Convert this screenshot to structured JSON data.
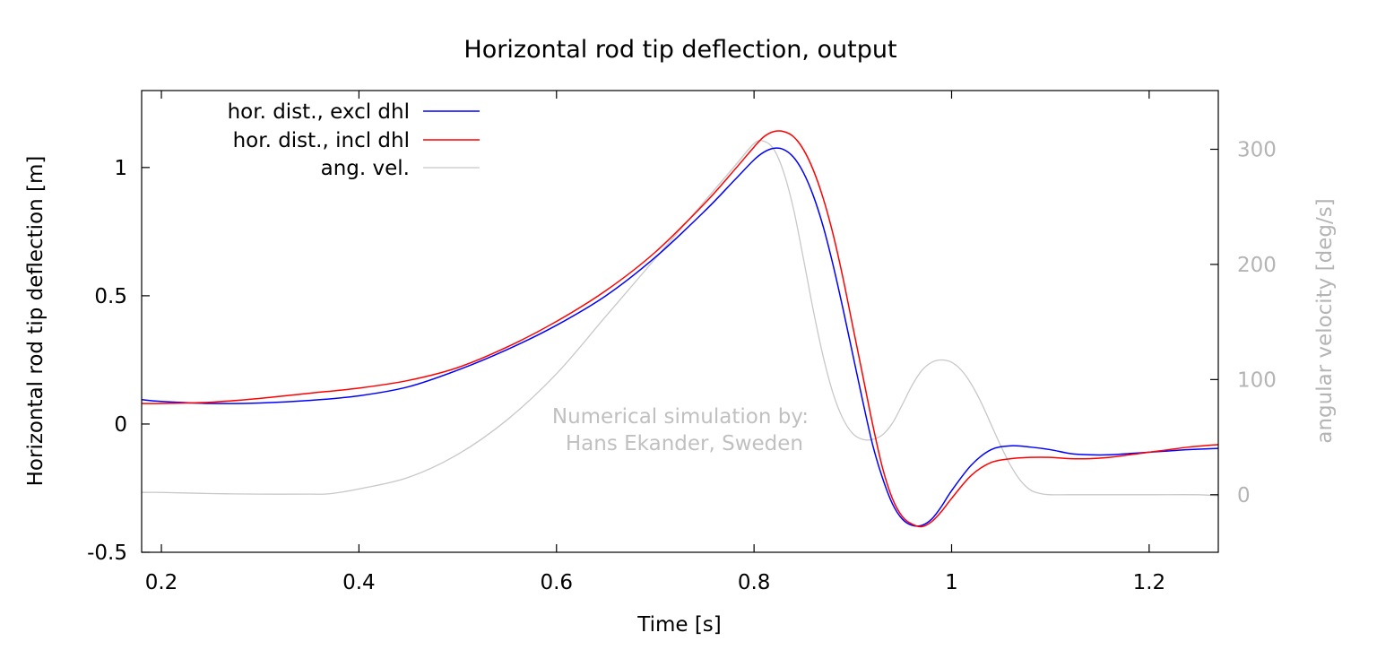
{
  "chart_data": {
    "type": "line",
    "title": "Horizontal rod tip deflection, output",
    "xlabel": "Time [s]",
    "ylabel": "Horizontal rod tip deflection [m]",
    "y2label": "angular velocity [deg/s]",
    "xlim": [
      0.18,
      1.27
    ],
    "ylim": [
      -0.5,
      1.3
    ],
    "y2lim": [
      -50,
      351
    ],
    "xticks": [
      0.2,
      0.4,
      0.6,
      0.8,
      1,
      1.2
    ],
    "xtick_labels": [
      "0.2",
      "0.4",
      "0.6",
      "0.8",
      "1",
      "1.2"
    ],
    "yticks": [
      -0.5,
      0,
      0.5,
      1
    ],
    "ytick_labels": [
      "-0.5",
      "0",
      "0.5",
      "1"
    ],
    "y2ticks": [
      0,
      100,
      200,
      300
    ],
    "y2tick_labels": [
      "0",
      "100",
      "200",
      "300"
    ],
    "grid": false,
    "legend_position": "top-left",
    "annotation": [
      "Numerical simulation by:",
      "Hans Ekander, Sweden"
    ],
    "series": [
      {
        "name": "hor. dist., excl dhl",
        "axis": "y",
        "color": "#0000ff",
        "x": [
          0.18,
          0.2,
          0.25,
          0.3,
          0.35,
          0.4,
          0.45,
          0.5,
          0.55,
          0.6,
          0.65,
          0.7,
          0.75,
          0.78,
          0.8,
          0.81,
          0.82,
          0.83,
          0.84,
          0.85,
          0.86,
          0.87,
          0.88,
          0.89,
          0.9,
          0.91,
          0.92,
          0.93,
          0.94,
          0.95,
          0.96,
          0.97,
          0.98,
          0.99,
          1.0,
          1.02,
          1.04,
          1.06,
          1.08,
          1.1,
          1.12,
          1.14,
          1.16,
          1.18,
          1.2,
          1.22,
          1.24,
          1.27
        ],
        "y": [
          0.095,
          0.088,
          0.08,
          0.082,
          0.092,
          0.11,
          0.145,
          0.21,
          0.29,
          0.385,
          0.5,
          0.65,
          0.83,
          0.95,
          1.03,
          1.06,
          1.075,
          1.07,
          1.04,
          0.98,
          0.89,
          0.77,
          0.62,
          0.45,
          0.27,
          0.09,
          -0.08,
          -0.21,
          -0.31,
          -0.37,
          -0.395,
          -0.395,
          -0.37,
          -0.32,
          -0.26,
          -0.16,
          -0.1,
          -0.085,
          -0.09,
          -0.1,
          -0.115,
          -0.12,
          -0.12,
          -0.115,
          -0.11,
          -0.105,
          -0.1,
          -0.095
        ]
      },
      {
        "name": "hor. dist., incl dhl",
        "axis": "y",
        "color": "#ff0000",
        "x": [
          0.18,
          0.2,
          0.25,
          0.3,
          0.35,
          0.4,
          0.45,
          0.5,
          0.55,
          0.6,
          0.65,
          0.7,
          0.75,
          0.78,
          0.8,
          0.81,
          0.82,
          0.83,
          0.84,
          0.85,
          0.86,
          0.87,
          0.88,
          0.89,
          0.9,
          0.91,
          0.92,
          0.93,
          0.94,
          0.95,
          0.96,
          0.97,
          0.98,
          0.99,
          1.0,
          1.02,
          1.04,
          1.06,
          1.08,
          1.1,
          1.12,
          1.14,
          1.16,
          1.18,
          1.2,
          1.22,
          1.24,
          1.27
        ],
        "y": [
          0.08,
          0.08,
          0.085,
          0.1,
          0.12,
          0.14,
          0.17,
          0.22,
          0.3,
          0.4,
          0.52,
          0.67,
          0.86,
          0.99,
          1.08,
          1.12,
          1.14,
          1.14,
          1.12,
          1.07,
          0.99,
          0.88,
          0.74,
          0.57,
          0.38,
          0.19,
          0.0,
          -0.17,
          -0.29,
          -0.36,
          -0.39,
          -0.4,
          -0.38,
          -0.34,
          -0.29,
          -0.2,
          -0.15,
          -0.135,
          -0.13,
          -0.13,
          -0.135,
          -0.135,
          -0.13,
          -0.12,
          -0.11,
          -0.1,
          -0.09,
          -0.08
        ]
      },
      {
        "name": "ang. vel.",
        "axis": "y2",
        "color": "#c8c8c8",
        "x": [
          0.18,
          0.2,
          0.25,
          0.3,
          0.35,
          0.37,
          0.4,
          0.45,
          0.5,
          0.55,
          0.6,
          0.65,
          0.7,
          0.75,
          0.78,
          0.8,
          0.81,
          0.82,
          0.83,
          0.84,
          0.85,
          0.86,
          0.87,
          0.88,
          0.89,
          0.9,
          0.91,
          0.92,
          0.93,
          0.94,
          0.95,
          0.96,
          0.97,
          0.98,
          0.99,
          1.0,
          1.01,
          1.02,
          1.03,
          1.04,
          1.05,
          1.06,
          1.07,
          1.08,
          1.09,
          1.1,
          1.12,
          1.15,
          1.2,
          1.25,
          1.27
        ],
        "y": [
          2,
          2,
          1,
          0.5,
          0.5,
          0.8,
          5,
          15,
          35,
          65,
          105,
          155,
          205,
          255,
          285,
          305,
          307,
          300,
          280,
          248,
          205,
          160,
          120,
          88,
          66,
          53,
          48,
          48,
          52,
          62,
          78,
          95,
          108,
          115,
          117,
          115,
          108,
          96,
          80,
          61,
          42,
          25,
          12,
          4,
          1,
          0,
          0,
          0,
          0,
          0,
          -1
        ]
      }
    ]
  }
}
